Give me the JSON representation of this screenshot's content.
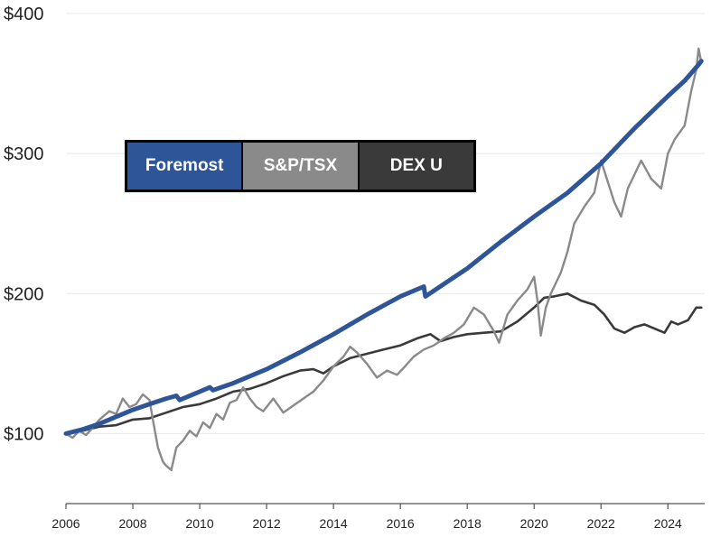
{
  "chart_data": {
    "type": "line",
    "y_axis": {
      "min": 50,
      "max": 400,
      "ticks": [
        100,
        200,
        300,
        400
      ],
      "tick_labels": [
        "$100",
        "$200",
        "$300",
        "$400"
      ],
      "gridlines": true
    },
    "x_axis": {
      "min": 2006,
      "max": 2025.1,
      "ticks": [
        2006,
        2008,
        2010,
        2012,
        2014,
        2016,
        2018,
        2020,
        2022,
        2024
      ],
      "tick_labels": [
        "2006",
        "2008",
        "2010",
        "2012",
        "2014",
        "2016",
        "2018",
        "2020",
        "2022",
        "2024"
      ]
    },
    "legend": {
      "placement": "top-left"
    },
    "series": [
      {
        "name": "Foremost",
        "color": "#2e5597",
        "x": [
          2006,
          2006.5,
          2007,
          2007.5,
          2008,
          2008.5,
          2009,
          2009.3,
          2009.4,
          2010,
          2010.3,
          2010.4,
          2011,
          2012,
          2013,
          2014,
          2015,
          2016,
          2016.7,
          2016.75,
          2017,
          2018,
          2019,
          2020,
          2021,
          2022,
          2023,
          2024,
          2024.5,
          2024.9,
          2025.0
        ],
        "y": [
          100,
          103,
          107,
          112,
          117,
          121,
          125,
          127,
          124,
          130,
          133,
          131,
          136,
          146,
          158,
          171,
          185,
          198,
          205,
          198,
          202,
          218,
          237,
          255,
          272,
          293,
          318,
          341,
          352,
          363,
          366
        ]
      },
      {
        "name": "S&P/TSX",
        "color": "#8a8a8a",
        "x": [
          2006,
          2006.2,
          2006.4,
          2006.6,
          2006.8,
          2007,
          2007.3,
          2007.5,
          2007.7,
          2007.9,
          2008.1,
          2008.3,
          2008.5,
          2008.6,
          2008.75,
          2008.9,
          2009.0,
          2009.15,
          2009.3,
          2009.5,
          2009.7,
          2009.9,
          2010.1,
          2010.3,
          2010.5,
          2010.7,
          2010.9,
          2011.1,
          2011.3,
          2011.5,
          2011.7,
          2011.9,
          2012.2,
          2012.5,
          2012.8,
          2013.1,
          2013.4,
          2013.7,
          2014.0,
          2014.3,
          2014.5,
          2014.7,
          2015.0,
          2015.3,
          2015.6,
          2015.9,
          2016.1,
          2016.4,
          2016.7,
          2017.0,
          2017.3,
          2017.6,
          2017.9,
          2018.2,
          2018.5,
          2018.8,
          2018.95,
          2019.2,
          2019.5,
          2019.8,
          2020.0,
          2020.1,
          2020.2,
          2020.35,
          2020.5,
          2020.8,
          2021.0,
          2021.2,
          2021.5,
          2021.8,
          2022.0,
          2022.2,
          2022.4,
          2022.6,
          2022.8,
          2023.0,
          2023.2,
          2023.5,
          2023.8,
          2024.0,
          2024.2,
          2024.5,
          2024.7,
          2024.85,
          2024.92,
          2025.0
        ],
        "y": [
          100,
          97,
          102,
          99,
          104,
          110,
          116,
          114,
          125,
          119,
          121,
          128,
          124,
          110,
          90,
          80,
          77,
          74,
          90,
          95,
          102,
          98,
          108,
          104,
          114,
          110,
          122,
          124,
          133,
          125,
          119,
          116,
          125,
          115,
          120,
          125,
          130,
          138,
          148,
          155,
          162,
          158,
          150,
          140,
          145,
          142,
          147,
          155,
          160,
          163,
          168,
          172,
          178,
          190,
          185,
          173,
          165,
          185,
          195,
          203,
          212,
          195,
          170,
          190,
          200,
          215,
          230,
          250,
          262,
          272,
          295,
          280,
          265,
          255,
          275,
          285,
          295,
          282,
          275,
          300,
          310,
          320,
          345,
          360,
          375,
          365
        ]
      },
      {
        "name": "DEX U",
        "color": "#3a3a3a",
        "x": [
          2006,
          2006.5,
          2007,
          2007.5,
          2008,
          2008.5,
          2009,
          2009.5,
          2010,
          2010.5,
          2011,
          2011.5,
          2012,
          2012.5,
          2013,
          2013.4,
          2013.7,
          2014,
          2014.5,
          2015,
          2015.5,
          2016,
          2016.5,
          2016.9,
          2017.2,
          2017.6,
          2018,
          2018.5,
          2019,
          2019.5,
          2020,
          2020.3,
          2020.6,
          2021,
          2021.4,
          2021.8,
          2022.1,
          2022.4,
          2022.7,
          2023,
          2023.3,
          2023.6,
          2023.9,
          2024.1,
          2024.3,
          2024.6,
          2024.85,
          2025.0
        ],
        "y": [
          100,
          102,
          105,
          106,
          110,
          111,
          115,
          119,
          121,
          125,
          130,
          132,
          136,
          141,
          145,
          146,
          143,
          148,
          154,
          157,
          160,
          163,
          168,
          171,
          166,
          169,
          171,
          172,
          173,
          180,
          190,
          197,
          198,
          200,
          195,
          192,
          185,
          175,
          172,
          176,
          178,
          175,
          172,
          180,
          178,
          181,
          190,
          190
        ]
      }
    ]
  }
}
